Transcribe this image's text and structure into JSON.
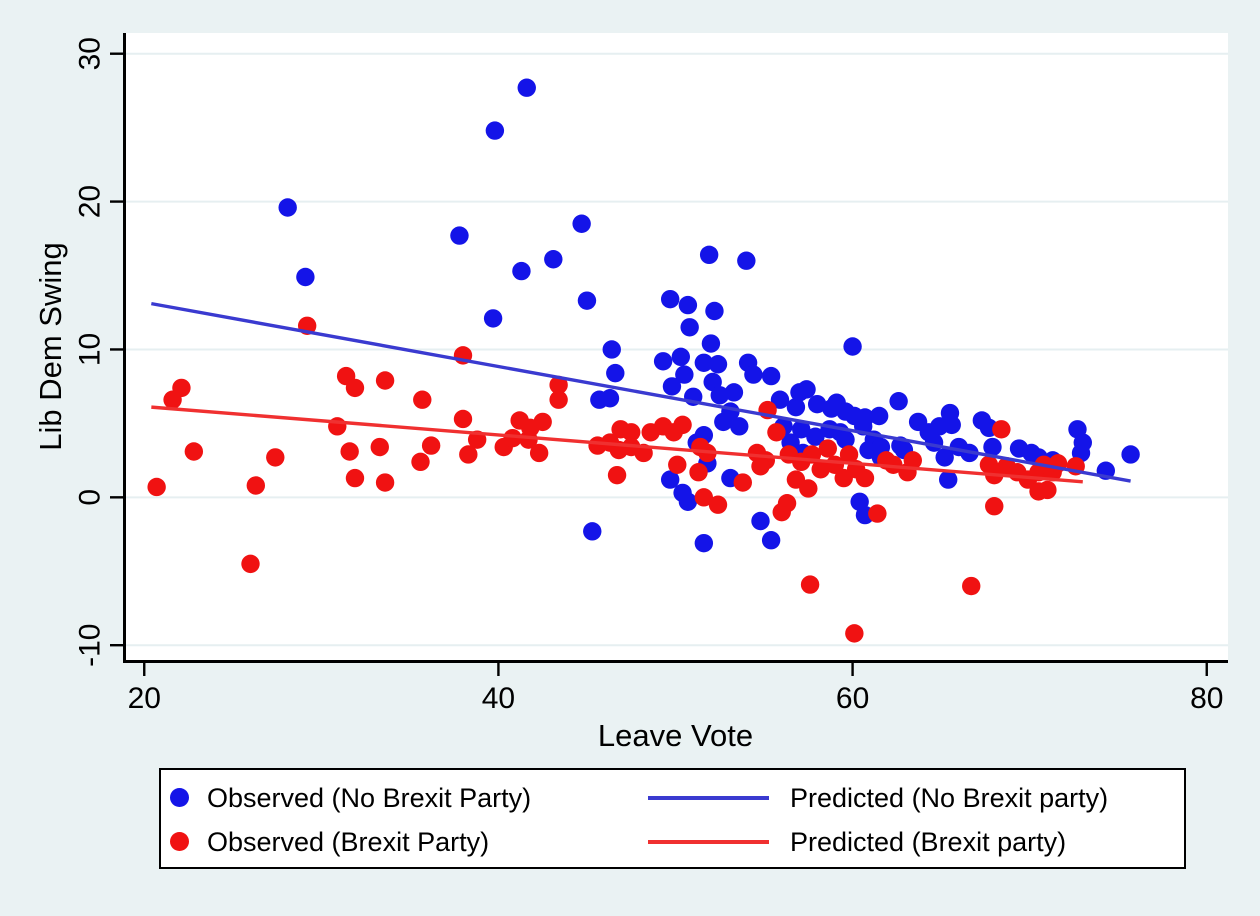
{
  "figure": {
    "background_color": "#eaf2f3",
    "plot_background": "#ffffff",
    "grid_color": "#e6eff1",
    "axis_color": "#000000"
  },
  "chart_data": {
    "type": "scatter",
    "title": "",
    "xlabel": "Leave Vote",
    "ylabel": "Lib Dem Swing",
    "xlim": [
      18.8,
      81.2
    ],
    "ylim": [
      -11.0,
      31.4
    ],
    "grid": "horizontal",
    "legend_position": "bottom",
    "x_ticks": [
      {
        "value": 20,
        "label": "20"
      },
      {
        "value": 40,
        "label": "40"
      },
      {
        "value": 60,
        "label": "60"
      },
      {
        "value": 80,
        "label": "80"
      }
    ],
    "y_ticks": [
      {
        "value": -10,
        "label": "-10"
      },
      {
        "value": 0,
        "label": "0"
      },
      {
        "value": 10,
        "label": "10"
      },
      {
        "value": 20,
        "label": "20"
      },
      {
        "value": 30,
        "label": "30"
      }
    ],
    "series": [
      {
        "name": "Observed (No Brexit Party)",
        "type": "scatter",
        "color": "#1414e8",
        "points": [
          [
            41.6,
            27.7
          ],
          [
            39.8,
            24.8
          ],
          [
            28.1,
            19.6
          ],
          [
            44.7,
            18.5
          ],
          [
            37.8,
            17.7
          ],
          [
            43.1,
            16.1
          ],
          [
            51.9,
            16.4
          ],
          [
            54.0,
            16.0
          ],
          [
            41.3,
            15.3
          ],
          [
            29.1,
            14.9
          ],
          [
            45.0,
            13.3
          ],
          [
            49.7,
            13.4
          ],
          [
            50.7,
            13.0
          ],
          [
            52.2,
            12.6
          ],
          [
            39.7,
            12.1
          ],
          [
            50.8,
            11.5
          ],
          [
            52.0,
            10.4
          ],
          [
            46.4,
            10.0
          ],
          [
            60.0,
            10.2
          ],
          [
            49.3,
            9.2
          ],
          [
            50.3,
            9.5
          ],
          [
            51.6,
            9.1
          ],
          [
            52.4,
            9.0
          ],
          [
            54.1,
            9.1
          ],
          [
            46.6,
            8.4
          ],
          [
            50.5,
            8.3
          ],
          [
            52.1,
            7.8
          ],
          [
            54.4,
            8.3
          ],
          [
            55.4,
            8.2
          ],
          [
            45.7,
            6.6
          ],
          [
            46.3,
            6.7
          ],
          [
            49.8,
            7.5
          ],
          [
            51.0,
            6.8
          ],
          [
            52.5,
            6.9
          ],
          [
            53.3,
            7.1
          ],
          [
            55.9,
            6.6
          ],
          [
            56.8,
            6.1
          ],
          [
            53.1,
            5.8
          ],
          [
            52.7,
            5.1
          ],
          [
            53.6,
            4.8
          ],
          [
            57.0,
            7.1
          ],
          [
            57.4,
            7.3
          ],
          [
            58.0,
            6.3
          ],
          [
            58.8,
            6.0
          ],
          [
            59.1,
            6.4
          ],
          [
            59.6,
            5.8
          ],
          [
            60.1,
            5.5
          ],
          [
            60.6,
            4.8
          ],
          [
            60.7,
            5.4
          ],
          [
            61.5,
            5.5
          ],
          [
            59.3,
            4.4
          ],
          [
            61.2,
            3.9
          ],
          [
            56.1,
            4.8
          ],
          [
            57.1,
            4.6
          ],
          [
            57.9,
            4.1
          ],
          [
            58.7,
            4.6
          ],
          [
            59.6,
            3.9
          ],
          [
            56.5,
            3.7
          ],
          [
            57.2,
            3.0
          ],
          [
            60.9,
            3.2
          ],
          [
            61.6,
            2.7
          ],
          [
            62.7,
            3.5
          ],
          [
            61.6,
            3.4
          ],
          [
            51.6,
            4.2
          ],
          [
            51.2,
            3.7
          ],
          [
            51.8,
            2.3
          ],
          [
            53.1,
            1.3
          ],
          [
            49.7,
            1.2
          ],
          [
            50.4,
            0.3
          ],
          [
            50.7,
            -0.3
          ],
          [
            62.6,
            6.5
          ],
          [
            63.7,
            5.1
          ],
          [
            64.3,
            4.4
          ],
          [
            64.9,
            4.8
          ],
          [
            65.5,
            5.7
          ],
          [
            65.6,
            4.9
          ],
          [
            67.3,
            5.2
          ],
          [
            67.7,
            4.7
          ],
          [
            62.9,
            3.2
          ],
          [
            64.6,
            3.7
          ],
          [
            65.2,
            2.7
          ],
          [
            66.0,
            3.4
          ],
          [
            66.6,
            3.0
          ],
          [
            65.4,
            1.2
          ],
          [
            67.9,
            3.4
          ],
          [
            69.4,
            3.3
          ],
          [
            70.1,
            3.0
          ],
          [
            70.5,
            2.7
          ],
          [
            71.3,
            2.5
          ],
          [
            72.7,
            4.6
          ],
          [
            73.0,
            3.7
          ],
          [
            72.9,
            3.0
          ],
          [
            74.3,
            1.8
          ],
          [
            75.7,
            2.9
          ],
          [
            45.3,
            -2.3
          ],
          [
            51.6,
            -3.1
          ],
          [
            54.8,
            -1.6
          ],
          [
            55.4,
            -2.9
          ],
          [
            60.7,
            -1.2
          ],
          [
            60.4,
            -0.3
          ]
        ]
      },
      {
        "name": "Observed (Brexit Party)",
        "type": "scatter",
        "color": "#f01212",
        "points": [
          [
            20.7,
            0.7
          ],
          [
            21.6,
            6.6
          ],
          [
            22.1,
            7.4
          ],
          [
            22.8,
            3.1
          ],
          [
            26.0,
            -4.5
          ],
          [
            26.3,
            0.8
          ],
          [
            27.4,
            2.7
          ],
          [
            29.2,
            11.6
          ],
          [
            30.9,
            4.8
          ],
          [
            31.4,
            8.2
          ],
          [
            31.9,
            7.4
          ],
          [
            33.6,
            7.9
          ],
          [
            31.6,
            3.1
          ],
          [
            33.3,
            3.4
          ],
          [
            31.9,
            1.3
          ],
          [
            33.6,
            1.0
          ],
          [
            35.7,
            6.6
          ],
          [
            35.6,
            2.4
          ],
          [
            36.2,
            3.5
          ],
          [
            38.0,
            9.6
          ],
          [
            38.0,
            5.3
          ],
          [
            38.3,
            2.9
          ],
          [
            38.8,
            3.9
          ],
          [
            40.3,
            3.4
          ],
          [
            40.8,
            4.0
          ],
          [
            41.2,
            5.2
          ],
          [
            41.7,
            3.9
          ],
          [
            41.8,
            4.7
          ],
          [
            42.3,
            3.0
          ],
          [
            42.5,
            5.1
          ],
          [
            43.4,
            7.6
          ],
          [
            43.4,
            6.6
          ],
          [
            45.6,
            3.5
          ],
          [
            46.3,
            3.7
          ],
          [
            46.9,
            4.6
          ],
          [
            47.5,
            4.4
          ],
          [
            46.8,
            3.2
          ],
          [
            47.5,
            3.4
          ],
          [
            48.6,
            4.4
          ],
          [
            49.3,
            4.8
          ],
          [
            49.9,
            4.4
          ],
          [
            50.4,
            4.9
          ],
          [
            48.2,
            3.0
          ],
          [
            46.7,
            1.5
          ],
          [
            50.1,
            2.2
          ],
          [
            51.3,
            1.7
          ],
          [
            51.8,
            3.0
          ],
          [
            51.4,
            3.4
          ],
          [
            51.6,
            0.0
          ],
          [
            52.4,
            -0.5
          ],
          [
            53.8,
            1.0
          ],
          [
            54.6,
            3.0
          ],
          [
            55.1,
            2.5
          ],
          [
            54.8,
            2.1
          ],
          [
            55.2,
            5.9
          ],
          [
            55.7,
            4.4
          ],
          [
            56.4,
            2.9
          ],
          [
            57.1,
            2.4
          ],
          [
            57.7,
            2.9
          ],
          [
            58.2,
            1.9
          ],
          [
            58.6,
            3.3
          ],
          [
            59.0,
            2.2
          ],
          [
            59.5,
            1.3
          ],
          [
            59.8,
            2.9
          ],
          [
            60.2,
            1.9
          ],
          [
            60.7,
            1.3
          ],
          [
            56.8,
            1.2
          ],
          [
            57.5,
            0.6
          ],
          [
            56.0,
            -1.0
          ],
          [
            56.3,
            -0.4
          ],
          [
            57.6,
            -5.9
          ],
          [
            60.1,
            -9.2
          ],
          [
            61.4,
            -1.1
          ],
          [
            68.0,
            -0.6
          ],
          [
            66.7,
            -6.0
          ],
          [
            61.9,
            2.5
          ],
          [
            62.3,
            2.2
          ],
          [
            63.1,
            1.7
          ],
          [
            63.4,
            2.5
          ],
          [
            68.4,
            4.6
          ],
          [
            67.7,
            2.2
          ],
          [
            68.0,
            1.5
          ],
          [
            68.7,
            2.1
          ],
          [
            69.3,
            1.7
          ],
          [
            69.9,
            1.2
          ],
          [
            70.5,
            1.7
          ],
          [
            70.8,
            2.2
          ],
          [
            71.3,
            1.7
          ],
          [
            70.5,
            0.4
          ],
          [
            71.0,
            0.5
          ],
          [
            71.6,
            2.3
          ],
          [
            72.6,
            2.1
          ]
        ]
      },
      {
        "name": "Predicted (No Brexit party)",
        "type": "line",
        "color": "#3a3ad0",
        "points": [
          [
            20.4,
            13.1
          ],
          [
            75.7,
            1.1
          ]
        ]
      },
      {
        "name": "Predicted (Brexit party)",
        "type": "line",
        "color": "#f03030",
        "points": [
          [
            20.4,
            6.1
          ],
          [
            73.0,
            1.05
          ]
        ]
      }
    ]
  },
  "legend": {
    "background": "#ffffff",
    "border_color": "#000000"
  }
}
